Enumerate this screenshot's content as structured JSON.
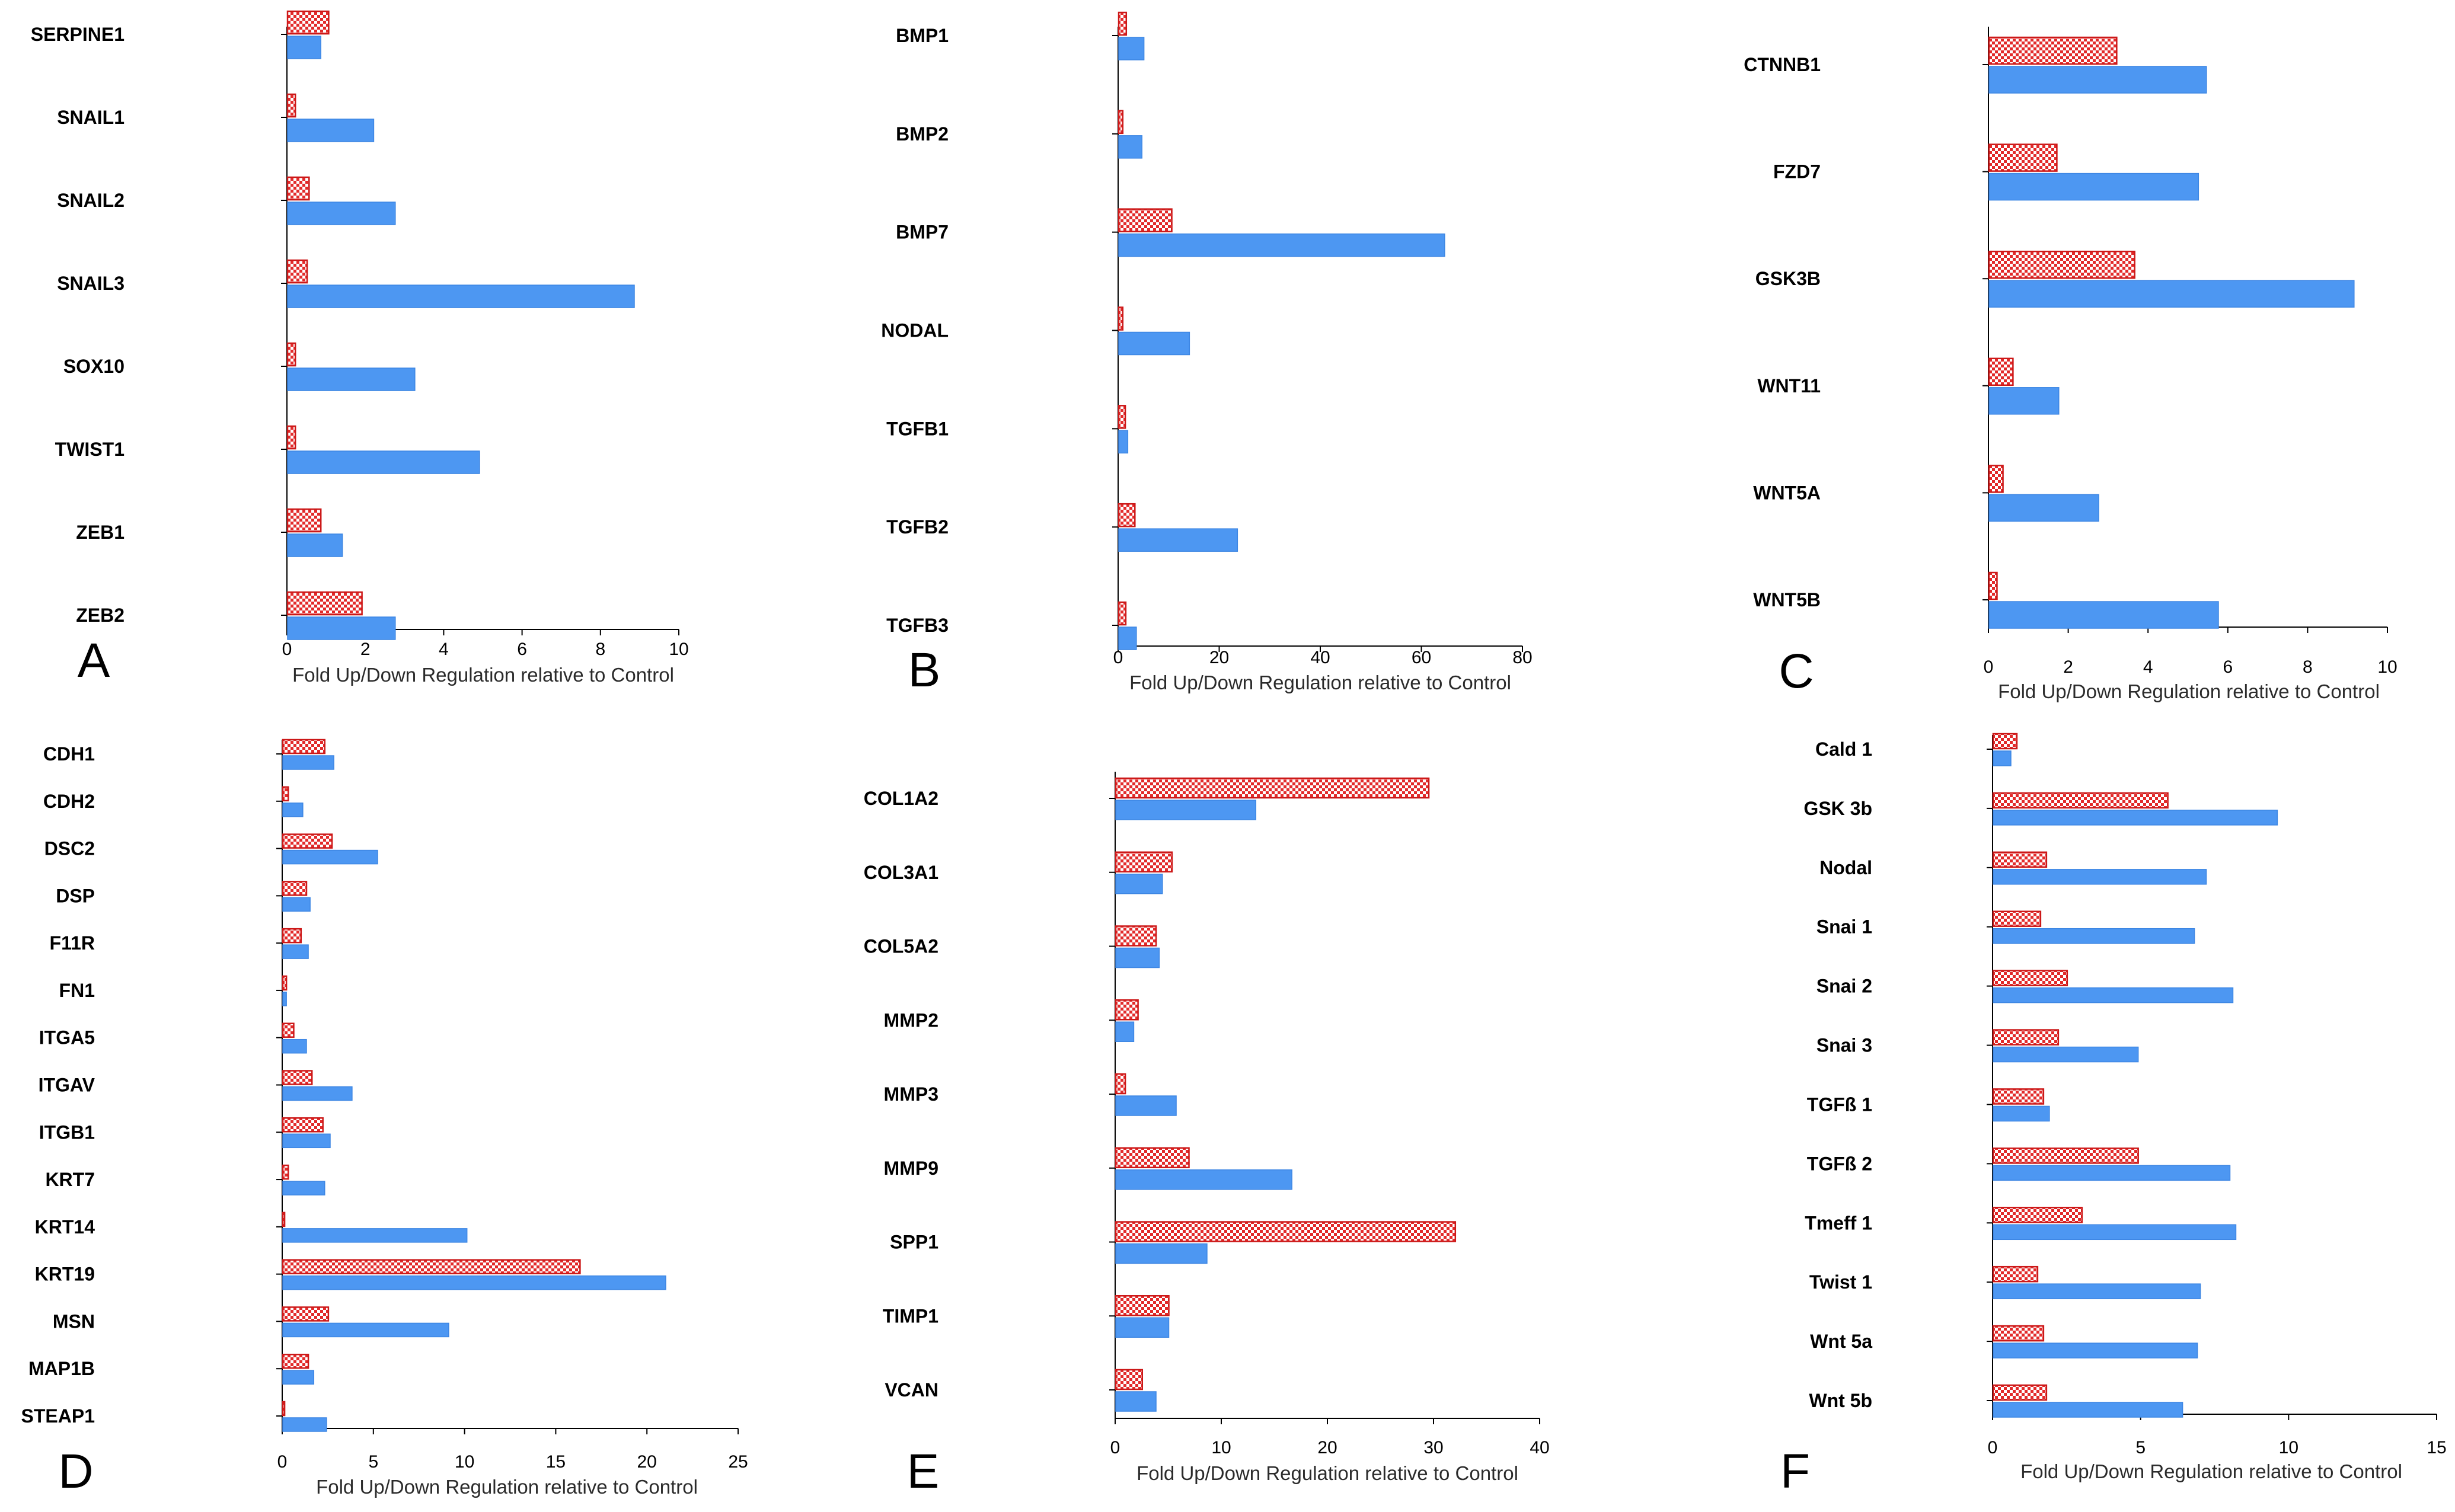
{
  "figure": {
    "colors": {
      "series_red": "#e22a2a",
      "series_blue": "#4d97f2",
      "axis": "#000000"
    }
  },
  "chart_data": [
    {
      "panel": "A",
      "type": "bar",
      "orientation": "horizontal",
      "xlabel": "Fold Up/Down Regulation relative to Control",
      "xlim": [
        0,
        10
      ],
      "xticks": [
        0,
        2,
        4,
        6,
        8,
        10
      ],
      "categories": [
        "SERPINE1",
        "SNAIL1",
        "SNAIL2",
        "SNAIL3",
        "SOX10",
        "TWIST1",
        "ZEB1",
        "ZEB2"
      ],
      "series": [
        {
          "name": "red checkered",
          "values": [
            1.05,
            0.2,
            0.55,
            0.5,
            0.2,
            0.2,
            0.85,
            1.9
          ]
        },
        {
          "name": "blue",
          "values": [
            0.85,
            2.2,
            2.75,
            8.85,
            3.25,
            4.9,
            1.4,
            2.75
          ]
        }
      ]
    },
    {
      "panel": "B",
      "type": "bar",
      "orientation": "horizontal",
      "xlabel": "Fold Up/Down Regulation relative to Control",
      "xlim": [
        0,
        80
      ],
      "xticks": [
        0,
        20,
        40,
        60,
        80
      ],
      "categories": [
        "BMP1",
        "BMP2",
        "BMP7",
        "NODAL",
        "TGFB1",
        "TGFB2",
        "TGFB3"
      ],
      "series": [
        {
          "name": "red checkered",
          "values": [
            1.5,
            0.8,
            10.5,
            0.8,
            1.3,
            3.2,
            1.4
          ]
        },
        {
          "name": "blue",
          "values": [
            5.0,
            4.6,
            64.5,
            14.0,
            1.8,
            23.5,
            3.5
          ]
        }
      ]
    },
    {
      "panel": "C",
      "type": "bar",
      "orientation": "horizontal",
      "xlabel": "Fold Up/Down Regulation relative to Control",
      "xlim": [
        0,
        10
      ],
      "xticks": [
        0,
        2,
        4,
        6,
        8,
        10
      ],
      "categories": [
        "CTNNB1",
        "FZD7",
        "GSK3B",
        "WNT11",
        "WNT5A",
        "WNT5B"
      ],
      "series": [
        {
          "name": "red checkered",
          "values": [
            3.2,
            1.7,
            3.65,
            0.6,
            0.35,
            0.2
          ]
        },
        {
          "name": "blue",
          "values": [
            5.45,
            5.25,
            9.15,
            1.75,
            2.75,
            5.75
          ]
        }
      ]
    },
    {
      "panel": "D",
      "type": "bar",
      "orientation": "horizontal",
      "xlabel": "Fold Up/Down Regulation relative to Control",
      "xlim": [
        0,
        25
      ],
      "xticks": [
        0,
        5,
        10,
        15,
        20,
        25
      ],
      "categories": [
        "CDH1",
        "CDH2",
        "DSC2",
        "DSP",
        "F11R",
        "FN1",
        "ITGA5",
        "ITGAV",
        "ITGB1",
        "KRT7",
        "KRT14",
        "KRT19",
        "MSN",
        "MAP1B",
        "STEAP1"
      ],
      "series": [
        {
          "name": "red checkered",
          "values": [
            2.3,
            0.3,
            2.7,
            1.3,
            1.0,
            0.2,
            0.6,
            1.6,
            2.2,
            0.3,
            0.1,
            16.3,
            2.5,
            1.4,
            0.1
          ]
        },
        {
          "name": "blue",
          "values": [
            2.8,
            1.1,
            5.2,
            1.5,
            1.4,
            0.2,
            1.3,
            3.8,
            2.6,
            2.3,
            10.1,
            21.0,
            9.1,
            1.7,
            2.4
          ]
        }
      ]
    },
    {
      "panel": "E",
      "type": "bar",
      "orientation": "horizontal",
      "xlabel": "Fold Up/Down Regulation relative to Control",
      "xlim": [
        0,
        40
      ],
      "xticks": [
        0,
        10,
        20,
        30,
        40
      ],
      "categories": [
        "COL1A2",
        "COL3A1",
        "COL5A2",
        "MMP2",
        "MMP3",
        "MMP9",
        "SPP1",
        "TIMP1",
        "VCAN"
      ],
      "series": [
        {
          "name": "red checkered",
          "values": [
            29.5,
            5.3,
            3.8,
            2.1,
            0.9,
            6.9,
            32.0,
            5.0,
            2.5
          ]
        },
        {
          "name": "blue",
          "values": [
            13.2,
            4.4,
            4.1,
            1.7,
            5.7,
            16.6,
            8.6,
            5.0,
            3.8
          ]
        }
      ]
    },
    {
      "panel": "F",
      "type": "bar",
      "orientation": "horizontal",
      "xlabel": "Fold Up/Down Regulation relative to Control",
      "xlim": [
        0,
        15
      ],
      "xticks": [
        0,
        5,
        10,
        15
      ],
      "categories": [
        "Cald 1",
        "GSK 3b",
        "Nodal",
        "Snai 1",
        "Snai 2",
        "Snai 3",
        "TGFß 1",
        "TGFß 2",
        "Tmeff 1",
        "Twist 1",
        "Wnt 5a",
        "Wnt 5b"
      ],
      "series": [
        {
          "name": "red checkered",
          "values": [
            0.8,
            5.9,
            1.8,
            1.6,
            2.5,
            2.2,
            1.7,
            4.9,
            3.0,
            1.5,
            1.7,
            1.8
          ]
        },
        {
          "name": "blue",
          "values": [
            0.6,
            9.6,
            7.2,
            6.8,
            8.1,
            4.9,
            1.9,
            8.0,
            8.2,
            7.0,
            6.9,
            6.4
          ]
        }
      ]
    }
  ]
}
